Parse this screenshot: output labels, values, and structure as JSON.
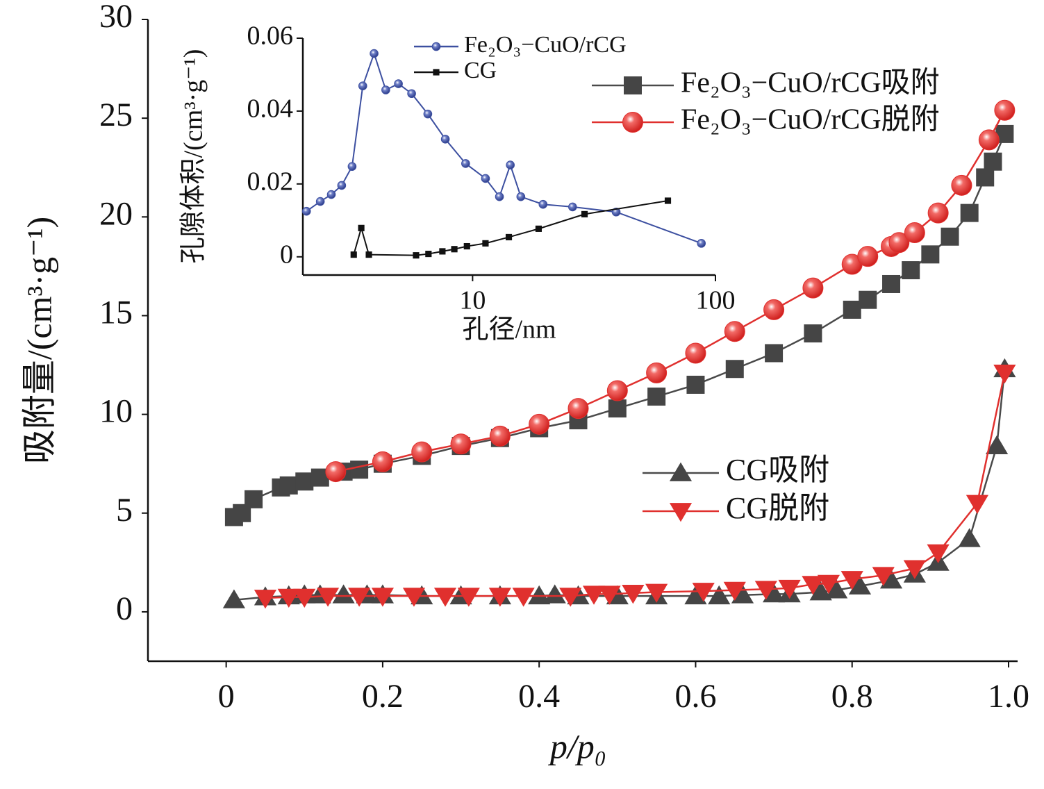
{
  "chart_data": [
    {
      "type": "line",
      "xlabel": "p/p₀",
      "ylabel": "吸附量/(cm³·g⁻¹)",
      "xlim": [
        -0.1,
        1.0
      ],
      "ylim": [
        -2.5,
        30
      ],
      "xticks": [
        0,
        0.2,
        0.4,
        0.6,
        0.8,
        {
          "value": 1.0,
          "label": "1.0"
        }
      ],
      "yticks": [
        0,
        5,
        10,
        15,
        20,
        25,
        30
      ],
      "series": [
        {
          "name": "Fe₂O₃−CuO/rCG吸附",
          "color": "#4a4a4a",
          "marker": "square",
          "x": [
            0.01,
            0.02,
            0.035,
            0.07,
            0.08,
            0.1,
            0.12,
            0.15,
            0.17,
            0.2,
            0.25,
            0.3,
            0.35,
            0.4,
            0.45,
            0.5,
            0.55,
            0.6,
            0.65,
            0.7,
            0.75,
            0.8,
            0.82,
            0.85,
            0.875,
            0.9,
            0.925,
            0.95,
            0.97,
            0.98,
            0.995
          ],
          "values": [
            4.8,
            5.0,
            5.7,
            6.3,
            6.4,
            6.6,
            6.8,
            7.1,
            7.2,
            7.5,
            7.9,
            8.4,
            8.8,
            9.3,
            9.7,
            10.3,
            10.9,
            11.5,
            12.3,
            13.1,
            14.1,
            15.3,
            15.8,
            16.6,
            17.3,
            18.1,
            19.0,
            20.2,
            22.0,
            22.8,
            24.2
          ]
        },
        {
          "name": "Fe₂O₃−CuO/rCG脱附",
          "color": "#e0302e",
          "marker": "circle",
          "x": [
            0.14,
            0.2,
            0.25,
            0.3,
            0.35,
            0.4,
            0.45,
            0.5,
            0.55,
            0.6,
            0.65,
            0.7,
            0.75,
            0.8,
            0.82,
            0.85,
            0.86,
            0.88,
            0.91,
            0.94,
            0.975,
            0.995
          ],
          "values": [
            7.1,
            7.6,
            8.1,
            8.5,
            8.9,
            9.5,
            10.3,
            11.2,
            12.1,
            13.1,
            14.2,
            15.3,
            16.4,
            17.6,
            18.0,
            18.5,
            18.7,
            19.2,
            20.2,
            21.6,
            23.9,
            25.4
          ]
        },
        {
          "name": "CG吸附",
          "color": "#4a4a4a",
          "marker": "triangle-up",
          "x": [
            0.01,
            0.05,
            0.08,
            0.1,
            0.12,
            0.15,
            0.18,
            0.2,
            0.25,
            0.3,
            0.35,
            0.4,
            0.42,
            0.45,
            0.5,
            0.55,
            0.6,
            0.63,
            0.66,
            0.7,
            0.72,
            0.76,
            0.78,
            0.81,
            0.85,
            0.88,
            0.91,
            0.95,
            0.985,
            0.995
          ],
          "values": [
            0.6,
            0.75,
            0.8,
            0.85,
            0.85,
            0.85,
            0.85,
            0.85,
            0.8,
            0.8,
            0.8,
            0.8,
            0.85,
            0.8,
            0.8,
            0.8,
            0.8,
            0.8,
            0.85,
            0.9,
            0.9,
            1.0,
            1.1,
            1.3,
            1.6,
            1.9,
            2.5,
            3.7,
            8.4,
            12.3
          ]
        },
        {
          "name": "CG脱附",
          "color": "#e0302e",
          "marker": "triangle-down",
          "x": [
            0.05,
            0.08,
            0.1,
            0.13,
            0.17,
            0.2,
            0.24,
            0.28,
            0.31,
            0.35,
            0.38,
            0.44,
            0.47,
            0.49,
            0.52,
            0.55,
            0.61,
            0.65,
            0.69,
            0.72,
            0.75,
            0.77,
            0.8,
            0.84,
            0.88,
            0.91,
            0.96,
            0.995
          ],
          "values": [
            0.7,
            0.75,
            0.75,
            0.8,
            0.8,
            0.8,
            0.8,
            0.8,
            0.8,
            0.8,
            0.8,
            0.8,
            0.9,
            0.9,
            0.95,
            1.0,
            1.05,
            1.1,
            1.15,
            1.2,
            1.4,
            1.45,
            1.65,
            1.85,
            2.2,
            3.0,
            5.5,
            12.1
          ]
        }
      ]
    },
    {
      "type": "line",
      "xlabel": "孔径/nm",
      "ylabel": "孔隙体积/(cm³·g⁻¹)",
      "xscale": "log",
      "xlim": [
        2,
        100
      ],
      "ylim": [
        -0.005,
        0.06
      ],
      "xticks": [
        10,
        100
      ],
      "yticks": [
        0,
        0.02,
        0.04,
        0.06
      ],
      "series": [
        {
          "name": "Fe₂O₃−CuO/rCG",
          "color": "#3c4fa0",
          "marker": "circle",
          "x": [
            2.07,
            2.36,
            2.62,
            2.89,
            3.19,
            3.53,
            3.93,
            4.39,
            4.95,
            5.61,
            6.54,
            7.72,
            9.36,
            11.3,
            12.9,
            14.3,
            15.8,
            19.5,
            25.8,
            39.0,
            87.5
          ],
          "values": [
            0.0125,
            0.0152,
            0.0171,
            0.0196,
            0.0248,
            0.0469,
            0.0558,
            0.0458,
            0.0475,
            0.0448,
            0.0392,
            0.0323,
            0.0256,
            0.0215,
            0.0165,
            0.0252,
            0.0165,
            0.0144,
            0.0137,
            0.0123,
            0.0037
          ]
        },
        {
          "name": "CG",
          "color": "#111111",
          "marker": "square",
          "x": [
            3.24,
            3.48,
            3.74,
            5.85,
            6.58,
            7.51,
            8.41,
            9.48,
            11.3,
            14.1,
            18.7,
            28.9,
            63.7
          ],
          "values": [
            0.0006,
            0.0079,
            0.0006,
            0.0004,
            0.0008,
            0.0015,
            0.0021,
            0.0029,
            0.0037,
            0.0054,
            0.0077,
            0.0117,
            0.0154
          ]
        }
      ]
    }
  ]
}
